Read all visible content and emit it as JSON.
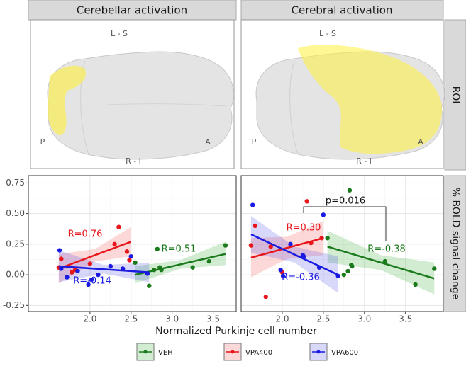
{
  "panels": [
    {
      "title": "Cerebellar activation",
      "orientation": {
        "top": "L - S",
        "left": "P",
        "right": "A",
        "bottom": "R - I"
      }
    },
    {
      "title": "Cerebral activation",
      "orientation": {
        "top": "L - S",
        "left": "P",
        "right": "A",
        "bottom": "R - I"
      }
    }
  ],
  "row_labels": [
    "ROI",
    "% BOLD signal change"
  ],
  "x_axis_title": "Normalized Purkinje cell number",
  "legend": [
    {
      "name": "VEH",
      "color": "#1b7a1b"
    },
    {
      "name": "VPA400",
      "color": "#e8161b"
    },
    {
      "name": "VPA600",
      "color": "#1a1ae0"
    }
  ],
  "chart_data": [
    {
      "type": "scatter",
      "grid": true,
      "xlim": [
        1.25,
        3.78
      ],
      "xticks": [
        {
          "value": 2,
          "label": "2.0"
        },
        {
          "value": 2.5,
          "label": "2.5"
        },
        {
          "value": 3,
          "label": "3.0"
        },
        {
          "value": 3.5,
          "label": "3.5"
        }
      ],
      "ylim": [
        -0.3,
        0.81
      ],
      "yticks": [
        {
          "value": -0.25,
          "label": "-0.25"
        },
        {
          "value": 0,
          "label": "0.00"
        },
        {
          "value": 0.25,
          "label": "0.25"
        },
        {
          "value": 0.5,
          "label": "0.50"
        },
        {
          "value": 0.75,
          "label": "0.75"
        }
      ],
      "series": [
        {
          "color": "#1b7a1b",
          "label": "R=0.51",
          "x": [
            2.55,
            2.72,
            2.78,
            2.82,
            2.85,
            2.87,
            3.25,
            3.45,
            3.65
          ],
          "values": [
            0.1,
            -0.09,
            0.04,
            0.21,
            0.06,
            0.04,
            0.06,
            0.11,
            0.24
          ],
          "trend": {
            "x": [
              2.55,
              3.65
            ],
            "values": [
              0.0,
              0.17
            ]
          },
          "ci": {
            "x": [
              2.55,
              3.1,
              3.65
            ],
            "lower": [
              -0.07,
              0.05,
              0.08
            ],
            "upper": [
              0.07,
              0.12,
              0.27
            ]
          }
        },
        {
          "color": "#e8161b",
          "label": "R=0.76",
          "x": [
            1.62,
            1.65,
            1.78,
            1.82,
            2.0,
            2.3,
            2.35,
            2.45,
            2.48
          ],
          "values": [
            0.06,
            0.13,
            0.02,
            0.04,
            0.09,
            0.25,
            0.39,
            0.19,
            0.12
          ],
          "trend": {
            "x": [
              1.62,
              2.5
            ],
            "values": [
              0.05,
              0.27
            ]
          },
          "ci": {
            "x": [
              1.62,
              2.06,
              2.5
            ],
            "lower": [
              -0.07,
              0.11,
              0.15
            ],
            "upper": [
              0.17,
              0.21,
              0.39
            ]
          }
        },
        {
          "color": "#1a1ae0",
          "label": "R=-0.14",
          "x": [
            1.63,
            1.65,
            1.72,
            1.85,
            1.98,
            2.02,
            2.1,
            2.25,
            2.4,
            2.5,
            2.7
          ],
          "values": [
            0.2,
            0.05,
            -0.02,
            0.03,
            -0.08,
            -0.04,
            0.0,
            0.07,
            0.05,
            0.15,
            0.01
          ],
          "trend": {
            "x": [
              1.62,
              2.72
            ],
            "values": [
              0.07,
              0.02
            ]
          },
          "ci": {
            "x": [
              1.62,
              2.17,
              2.72
            ],
            "lower": [
              -0.06,
              0.01,
              -0.06
            ],
            "upper": [
              0.2,
              0.08,
              0.1
            ]
          }
        }
      ]
    },
    {
      "type": "scatter",
      "grid": true,
      "xlim": [
        1.5,
        3.96
      ],
      "xticks": [
        {
          "value": 2,
          "label": "2.0"
        },
        {
          "value": 2.5,
          "label": "2.5"
        },
        {
          "value": 3,
          "label": "3.0"
        },
        {
          "value": 3.5,
          "label": "3.5"
        }
      ],
      "ylim": [
        -0.3,
        0.81
      ],
      "yticks": [
        -0.25,
        0,
        0.25,
        0.5,
        0.75
      ],
      "annotation": "p=0.016",
      "series": [
        {
          "color": "#1b7a1b",
          "label": "R=-0.38",
          "x": [
            2.55,
            2.75,
            2.8,
            2.82,
            2.84,
            2.85,
            3.25,
            3.62,
            3.85
          ],
          "values": [
            0.3,
            0.0,
            0.03,
            0.69,
            0.08,
            0.07,
            0.11,
            -0.08,
            0.05
          ],
          "trend": {
            "x": [
              2.55,
              3.85
            ],
            "values": [
              0.23,
              -0.03
            ]
          },
          "ci": {
            "x": [
              2.55,
              3.2,
              3.85
            ],
            "lower": [
              0.1,
              0.04,
              -0.16
            ],
            "upper": [
              0.36,
              0.16,
              0.1
            ]
          }
        },
        {
          "color": "#e8161b",
          "label": "R=0.30",
          "x": [
            1.62,
            1.67,
            1.8,
            1.86,
            2.0,
            2.3,
            2.35,
            2.48
          ],
          "values": [
            0.24,
            0.4,
            -0.18,
            0.23,
            0.02,
            0.6,
            0.26,
            0.3
          ],
          "trend": {
            "x": [
              1.62,
              2.5
            ],
            "values": [
              0.14,
              0.3
            ]
          },
          "ci": {
            "x": [
              1.62,
              2.06,
              2.5
            ],
            "lower": [
              -0.02,
              0.13,
              0.16
            ],
            "upper": [
              0.3,
              0.31,
              0.44
            ]
          }
        },
        {
          "color": "#1a1ae0",
          "label": "R=-0.36",
          "x": [
            1.64,
            1.98,
            2.01,
            2.1,
            2.25,
            2.26,
            2.45,
            2.5,
            2.68
          ],
          "values": [
            0.57,
            0.04,
            -0.01,
            0.25,
            0.16,
            0.15,
            0.06,
            0.49,
            -0.01
          ],
          "trend": {
            "x": [
              1.62,
              2.68
            ],
            "values": [
              0.33,
              0.0
            ]
          },
          "ci": {
            "x": [
              1.62,
              2.15,
              2.68
            ],
            "lower": [
              0.18,
              0.1,
              -0.15
            ],
            "upper": [
              0.48,
              0.23,
              0.15
            ]
          }
        }
      ]
    }
  ]
}
